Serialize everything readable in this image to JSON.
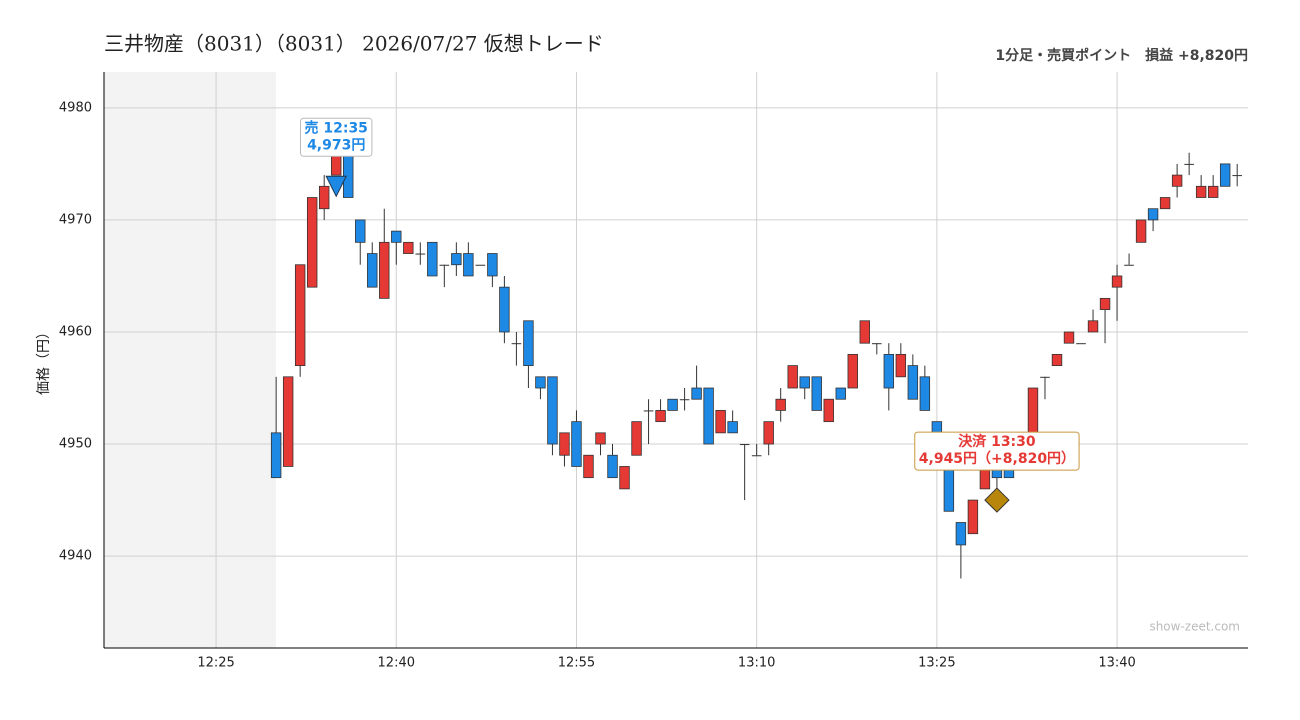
{
  "chart_data": {
    "type": "candlestick",
    "title": "三井物産（8031）（8031） 2026/07/27 仮想トレード",
    "subtitle": "1分足・売買ポイント　損益 +8,820円",
    "y_label": "価格（円）",
    "watermark": "show-zeet.com",
    "up_color": "#e53935",
    "down_color": "#1e88e5",
    "grid": true,
    "x": [
      "12:30",
      "12:31",
      "12:32",
      "12:33",
      "12:34",
      "12:35",
      "12:36",
      "12:37",
      "12:38",
      "12:39",
      "12:40",
      "12:41",
      "12:42",
      "12:43",
      "12:44",
      "12:45",
      "12:46",
      "12:47",
      "12:48",
      "12:49",
      "12:50",
      "12:51",
      "12:52",
      "12:53",
      "12:54",
      "12:55",
      "12:56",
      "12:57",
      "12:58",
      "12:59",
      "13:00",
      "13:01",
      "13:02",
      "13:03",
      "13:04",
      "13:05",
      "13:06",
      "13:07",
      "13:08",
      "13:09",
      "13:10",
      "13:11",
      "13:12",
      "13:13",
      "13:14",
      "13:15",
      "13:16",
      "13:17",
      "13:18",
      "13:19",
      "13:20",
      "13:21",
      "13:22",
      "13:23",
      "13:24",
      "13:25",
      "13:26",
      "13:27",
      "13:28",
      "13:29",
      "13:30",
      "13:31",
      "13:32",
      "13:33",
      "13:34",
      "13:35",
      "13:36",
      "13:37",
      "13:38",
      "13:39",
      "13:40",
      "13:41",
      "13:42",
      "13:43",
      "13:44",
      "13:45",
      "13:46",
      "13:47",
      "13:48",
      "13:49",
      "13:50"
    ],
    "open": [
      4951,
      4948,
      4957,
      4964,
      4971,
      4974,
      4976,
      4970,
      4967,
      4963,
      4969,
      4967,
      4967,
      4968,
      4966,
      4967,
      4967,
      4966,
      4967,
      4964,
      4959,
      4961,
      4956,
      4956,
      4949,
      4952,
      4947,
      4950,
      4949,
      4946,
      4949,
      4953,
      4952,
      4954,
      4954,
      4955,
      4955,
      4951,
      4952,
      4950,
      4949,
      4950,
      4953,
      4955,
      4956,
      4956,
      4952,
      4955,
      4955,
      4959,
      4959,
      4958,
      4956,
      4957,
      4956,
      4952,
      4948,
      4943,
      4942,
      4946,
      4948,
      4948,
      4948,
      4949,
      4956,
      4957,
      4959,
      4959,
      4960,
      4962,
      4964,
      4966,
      4968,
      4971,
      4971,
      4973,
      4975,
      4972,
      4972,
      4975,
      4974
    ],
    "high": [
      4956,
      4956,
      4966,
      4972,
      4974,
      4976,
      4976,
      4970,
      4968,
      4971,
      4969,
      4968,
      4968,
      4968,
      4966,
      4968,
      4968,
      4966,
      4967,
      4965,
      4960,
      4961,
      4956,
      4956,
      4951,
      4953,
      4949,
      4951,
      4950,
      4948,
      4952,
      4954,
      4954,
      4954,
      4955,
      4957,
      4955,
      4953,
      4953,
      4950,
      4950,
      4952,
      4955,
      4957,
      4956,
      4956,
      4954,
      4955,
      4958,
      4961,
      4959,
      4959,
      4959,
      4958,
      4957,
      4952,
      4948,
      4943,
      4945,
      4948,
      4948,
      4948,
      4950,
      4955,
      4956,
      4958,
      4960,
      4959,
      4962,
      4963,
      4966,
      4967,
      4970,
      4971,
      4972,
      4975,
      4976,
      4974,
      4974,
      4975,
      4975
    ],
    "low": [
      4947,
      4948,
      4956,
      4964,
      4970,
      4974,
      4972,
      4966,
      4964,
      4963,
      4966,
      4967,
      4966,
      4965,
      4964,
      4965,
      4965,
      4966,
      4964,
      4959,
      4957,
      4955,
      4954,
      4949,
      4948,
      4948,
      4947,
      4949,
      4947,
      4946,
      4949,
      4950,
      4952,
      4953,
      4953,
      4954,
      4950,
      4951,
      4951,
      4945,
      4949,
      4949,
      4952,
      4955,
      4954,
      4953,
      4952,
      4954,
      4955,
      4959,
      4958,
      4953,
      4956,
      4954,
      4953,
      4950,
      4944,
      4938,
      4942,
      4946,
      4946,
      4947,
      4948,
      4949,
      4954,
      4957,
      4959,
      4959,
      4960,
      4959,
      4961,
      4966,
      4968,
      4969,
      4971,
      4972,
      4974,
      4972,
      4972,
      4973,
      4973
    ],
    "close": [
      4947,
      4956,
      4966,
      4972,
      4973,
      4976,
      4972,
      4968,
      4964,
      4968,
      4968,
      4968,
      4967,
      4965,
      4966,
      4966,
      4965,
      4966,
      4965,
      4960,
      4959,
      4957,
      4955,
      4950,
      4951,
      4948,
      4949,
      4951,
      4947,
      4948,
      4952,
      4953,
      4953,
      4953,
      4954,
      4954,
      4950,
      4953,
      4951,
      4950,
      4949,
      4952,
      4954,
      4957,
      4955,
      4953,
      4954,
      4954,
      4958,
      4961,
      4959,
      4955,
      4958,
      4954,
      4953,
      4950,
      4944,
      4941,
      4945,
      4948,
      4947,
      4947,
      4950,
      4955,
      4956,
      4958,
      4960,
      4959,
      4961,
      4963,
      4965,
      4966,
      4970,
      4970,
      4972,
      4974,
      4975,
      4973,
      4973,
      4973,
      4974
    ],
    "xlim": [
      735.67,
      830.9
    ],
    "xticks": [
      {
        "value": 745,
        "label": "12:25"
      },
      {
        "value": 760,
        "label": "12:40"
      },
      {
        "value": 775,
        "label": "12:55"
      },
      {
        "value": 790,
        "label": "13:10"
      },
      {
        "value": 805,
        "label": "13:25"
      },
      {
        "value": 820,
        "label": "13:40"
      }
    ],
    "ylim": [
      4931.8,
      4983.2
    ],
    "yticks": [
      4940,
      4950,
      4960,
      4970,
      4980
    ],
    "annotations": [
      {
        "kind": "sell",
        "x": "12:35",
        "y": 4973,
        "text": "売 12:35",
        "value_label": "4,973円",
        "color": "#1e88e5"
      },
      {
        "kind": "exit",
        "x": "13:30",
        "y": 4945,
        "text": "決済 13:30",
        "value_label": "4,945円（+8,820円）",
        "color": "#e53935"
      }
    ]
  }
}
